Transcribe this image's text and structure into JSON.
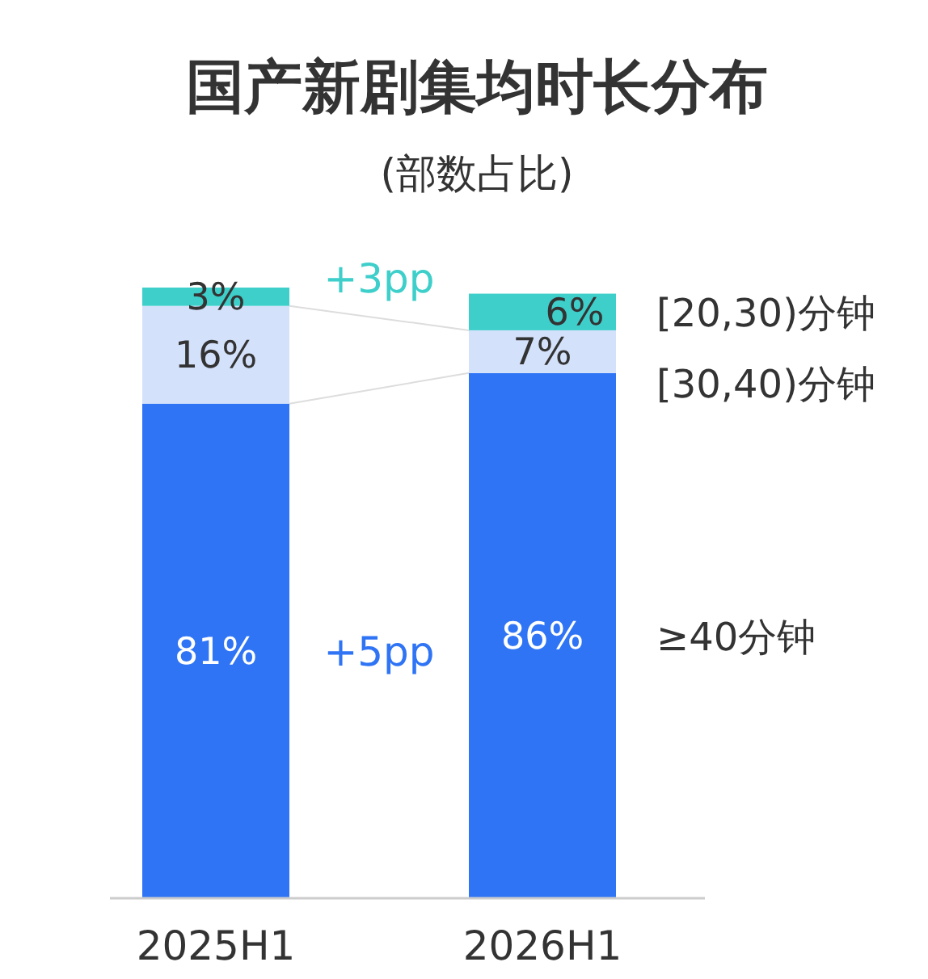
{
  "chart_data": {
    "type": "bar",
    "title": "国产新剧集均时长分布",
    "subtitle": "(部数占比)",
    "categories": [
      "2025H1",
      "2026H1"
    ],
    "stacked": true,
    "series": [
      {
        "name": "≥40分钟",
        "color": "#2f74f5",
        "values": [
          81,
          86
        ],
        "value_labels": [
          "81%",
          "86%"
        ]
      },
      {
        "name": "[30,40)分钟",
        "color": "#d4e1fa",
        "values": [
          16,
          7
        ],
        "value_labels": [
          "16%",
          "7%"
        ]
      },
      {
        "name": "[20,30)分钟",
        "color": "#3ecfcb",
        "values": [
          3,
          6
        ],
        "value_labels": [
          "3%",
          "6%"
        ]
      }
    ],
    "annotations": [
      "+5pp",
      "+3pp"
    ]
  }
}
